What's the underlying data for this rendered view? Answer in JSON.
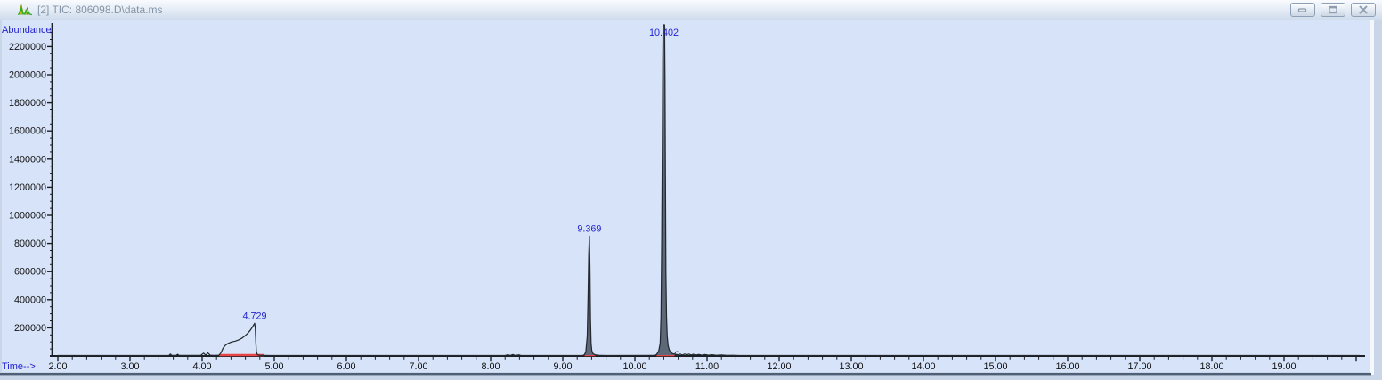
{
  "window": {
    "title": "[2] TIC: 806098.D\\data.ms",
    "icon": "chromatogram-icon",
    "controls": [
      {
        "name": "minimize"
      },
      {
        "name": "restore-down"
      },
      {
        "name": "close"
      }
    ]
  },
  "colors": {
    "plot_background": "#d7e3f8",
    "frame": "#c9d6e8",
    "trace": "#23282e",
    "peak_fill": "#5d6978",
    "axis_label_blue": "#2323cf",
    "tick_label_black": "#111111",
    "integration_baseline_red": "#e84545",
    "title_text": "#8494a6"
  },
  "chart_data": {
    "type": "line",
    "title": "TIC: 806098.D\\data.ms",
    "xlabel": "Time-->",
    "ylabel": "Abundance",
    "x_ticks": [
      "2.00",
      "3.00",
      "4.00",
      "5.00",
      "6.00",
      "7.00",
      "8.00",
      "9.00",
      "10.00",
      "11.00",
      "12.00",
      "13.00",
      "14.00",
      "15.00",
      "16.00",
      "17.00",
      "18.00",
      "19.00"
    ],
    "y_ticks": [
      "200000",
      "400000",
      "600000",
      "800000",
      "1000000",
      "1200000",
      "1400000",
      "1600000",
      "1800000",
      "2000000",
      "2200000"
    ],
    "xlim": [
      1.95,
      20.1
    ],
    "ylim": [
      0,
      2350000
    ],
    "grid": false,
    "legend": "none",
    "peaks": [
      {
        "label": "4.729",
        "rt": 4.729,
        "apex": 232000,
        "base": [
          4.235,
          4.86
        ],
        "solid": false,
        "clipped": false
      },
      {
        "label": "9.369",
        "rt": 9.369,
        "apex": 852000,
        "base": [
          9.29,
          9.55
        ],
        "solid": true,
        "clipped": false
      },
      {
        "label": "10.402",
        "rt": 10.402,
        "apex": 2450000,
        "base": [
          10.28,
          10.58
        ],
        "solid": true,
        "clipped": true
      }
    ],
    "baseline_segments": [
      [
        4.235,
        4.86
      ],
      [
        9.3,
        9.45
      ],
      [
        10.3,
        10.55
      ]
    ],
    "end_marker_rt": 10.585,
    "series": [
      {
        "name": "TIC",
        "points": [
          [
            2.0,
            3000
          ],
          [
            3.5,
            3000
          ],
          [
            3.54,
            4000
          ],
          [
            3.56,
            14000
          ],
          [
            3.58,
            4000
          ],
          [
            3.64,
            4000
          ],
          [
            3.66,
            12000
          ],
          [
            3.68,
            4000
          ],
          [
            3.98,
            4000
          ],
          [
            4.02,
            20000
          ],
          [
            4.05,
            6000
          ],
          [
            4.08,
            22000
          ],
          [
            4.11,
            6000
          ],
          [
            4.16,
            4000
          ],
          [
            4.235,
            6000
          ],
          [
            4.26,
            22000
          ],
          [
            4.29,
            55000
          ],
          [
            4.32,
            75000
          ],
          [
            4.36,
            90000
          ],
          [
            4.41,
            100000
          ],
          [
            4.46,
            106000
          ],
          [
            4.51,
            115000
          ],
          [
            4.55,
            126000
          ],
          [
            4.59,
            142000
          ],
          [
            4.63,
            160000
          ],
          [
            4.67,
            185000
          ],
          [
            4.7,
            208000
          ],
          [
            4.729,
            232000
          ],
          [
            4.737,
            195000
          ],
          [
            4.744,
            100000
          ],
          [
            4.752,
            30000
          ],
          [
            4.765,
            10000
          ],
          [
            4.79,
            5000
          ],
          [
            4.86,
            4000
          ],
          [
            4.95,
            3000
          ],
          [
            8.2,
            3000
          ],
          [
            8.24,
            9000
          ],
          [
            8.27,
            3000
          ],
          [
            8.31,
            10000
          ],
          [
            8.34,
            3000
          ],
          [
            8.39,
            8000
          ],
          [
            8.42,
            3000
          ],
          [
            8.5,
            3000
          ],
          [
            9.27,
            3000
          ],
          [
            9.3,
            8000
          ],
          [
            9.32,
            30000
          ],
          [
            9.34,
            140000
          ],
          [
            9.352,
            450000
          ],
          [
            9.361,
            730000
          ],
          [
            9.369,
            852000
          ],
          [
            9.376,
            640000
          ],
          [
            9.384,
            270000
          ],
          [
            9.393,
            90000
          ],
          [
            9.403,
            38000
          ],
          [
            9.42,
            16000
          ],
          [
            9.45,
            8000
          ],
          [
            9.5,
            5000
          ],
          [
            9.6,
            3000
          ],
          [
            10.27,
            4000
          ],
          [
            10.3,
            10000
          ],
          [
            10.33,
            35000
          ],
          [
            10.35,
            90000
          ],
          [
            10.362,
            280000
          ],
          [
            10.372,
            800000
          ],
          [
            10.38,
            1500000
          ],
          [
            10.386,
            2100000
          ],
          [
            10.391,
            2450000
          ],
          [
            10.411,
            2450000
          ],
          [
            10.417,
            1950000
          ],
          [
            10.423,
            1250000
          ],
          [
            10.43,
            600000
          ],
          [
            10.438,
            280000
          ],
          [
            10.448,
            140000
          ],
          [
            10.46,
            75000
          ],
          [
            10.475,
            45000
          ],
          [
            10.495,
            28000
          ],
          [
            10.52,
            18000
          ],
          [
            10.56,
            12000
          ],
          [
            10.6,
            9000
          ],
          [
            10.63,
            13000
          ],
          [
            10.66,
            7000
          ],
          [
            10.69,
            14000
          ],
          [
            10.72,
            8000
          ],
          [
            10.75,
            13000
          ],
          [
            10.78,
            7000
          ],
          [
            10.81,
            12000
          ],
          [
            10.85,
            7000
          ],
          [
            10.89,
            11000
          ],
          [
            10.93,
            6000
          ],
          [
            10.97,
            10000
          ],
          [
            11.02,
            6000
          ],
          [
            11.07,
            9000
          ],
          [
            11.13,
            5000
          ],
          [
            11.2,
            7000
          ],
          [
            11.28,
            4000
          ],
          [
            11.35,
            5000
          ],
          [
            11.45,
            3000
          ],
          [
            20.05,
            3000
          ]
        ]
      }
    ]
  }
}
